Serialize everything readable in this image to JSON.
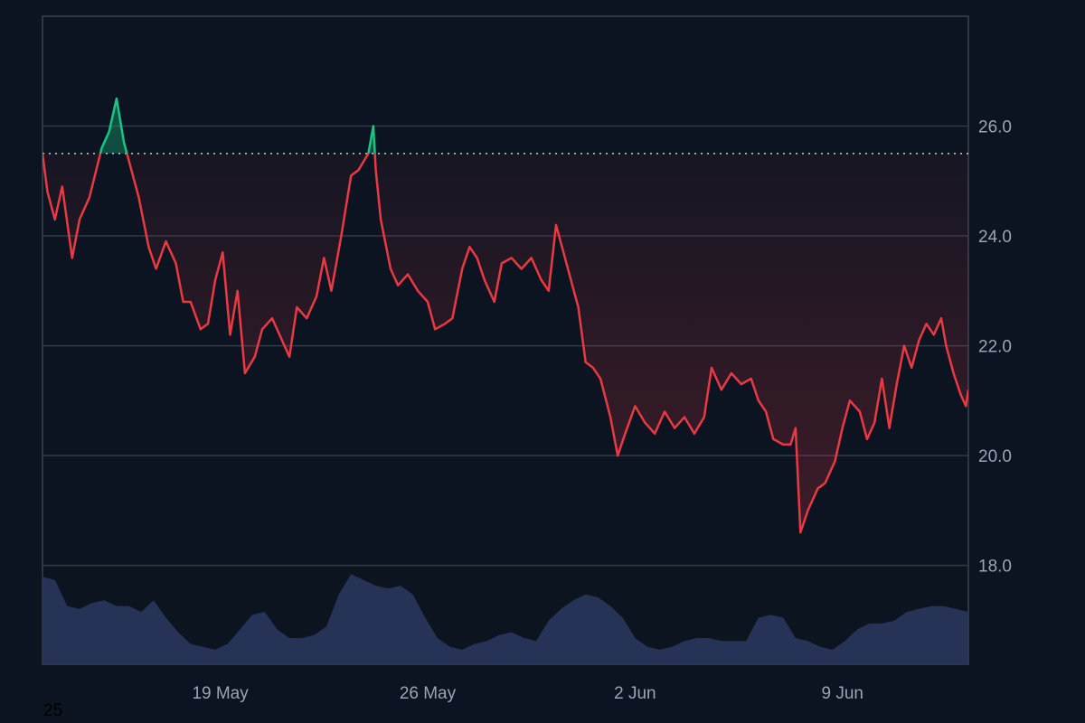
{
  "chart_data": {
    "type": "area",
    "ylim": [
      16.2,
      28.0
    ],
    "y_ticks": [
      "26.0",
      "24.0",
      "22.0",
      "20.0",
      "18.0"
    ],
    "y_tick_values": [
      26,
      24,
      22,
      20,
      18
    ],
    "x_ticks": [
      "19 May",
      "26 May",
      "2 Jun",
      "9 Jun"
    ],
    "x_tick_dates": [
      "2024-05-19",
      "2024-05-26",
      "2024-06-02",
      "2024-06-09"
    ],
    "x_range": [
      "2024-05-13",
      "2024-06-13T06:00"
    ],
    "baseline": 25.5,
    "grid": true,
    "colors": {
      "above": "#16c784",
      "below": "#ea3943",
      "volume": "#2d3a63",
      "background": "#0d1421"
    },
    "series": [
      {
        "values": [
          {
            "x": "2024-05-13T00:00",
            "y": 25.5
          },
          {
            "x": "2024-05-13T04:00",
            "y": 24.8
          },
          {
            "x": "2024-05-13T10:00",
            "y": 24.3
          },
          {
            "x": "2024-05-13T16:00",
            "y": 24.9
          },
          {
            "x": "2024-05-14T00:00",
            "y": 23.6
          },
          {
            "x": "2024-05-14T06:00",
            "y": 24.3
          },
          {
            "x": "2024-05-14T14:00",
            "y": 24.7
          },
          {
            "x": "2024-05-15T00:00",
            "y": 25.6
          },
          {
            "x": "2024-05-15T06:00",
            "y": 25.9
          },
          {
            "x": "2024-05-15T12:00",
            "y": 26.5
          },
          {
            "x": "2024-05-15T18:00",
            "y": 25.7
          },
          {
            "x": "2024-05-16T00:00",
            "y": 25.2
          },
          {
            "x": "2024-05-16T06:00",
            "y": 24.7
          },
          {
            "x": "2024-05-16T14:00",
            "y": 23.8
          },
          {
            "x": "2024-05-16T20:00",
            "y": 23.4
          },
          {
            "x": "2024-05-17T04:00",
            "y": 23.9
          },
          {
            "x": "2024-05-17T12:00",
            "y": 23.5
          },
          {
            "x": "2024-05-17T18:00",
            "y": 22.8
          },
          {
            "x": "2024-05-18T00:00",
            "y": 22.8
          },
          {
            "x": "2024-05-18T08:00",
            "y": 22.3
          },
          {
            "x": "2024-05-18T14:00",
            "y": 22.4
          },
          {
            "x": "2024-05-18T20:00",
            "y": 23.2
          },
          {
            "x": "2024-05-19T02:00",
            "y": 23.7
          },
          {
            "x": "2024-05-19T08:00",
            "y": 22.2
          },
          {
            "x": "2024-05-19T14:00",
            "y": 23.0
          },
          {
            "x": "2024-05-19T20:00",
            "y": 21.5
          },
          {
            "x": "2024-05-20T04:00",
            "y": 21.8
          },
          {
            "x": "2024-05-20T10:00",
            "y": 22.3
          },
          {
            "x": "2024-05-20T18:00",
            "y": 22.5
          },
          {
            "x": "2024-05-21T02:00",
            "y": 22.1
          },
          {
            "x": "2024-05-21T08:00",
            "y": 21.8
          },
          {
            "x": "2024-05-21T14:00",
            "y": 22.7
          },
          {
            "x": "2024-05-21T22:00",
            "y": 22.5
          },
          {
            "x": "2024-05-22T06:00",
            "y": 22.9
          },
          {
            "x": "2024-05-22T12:00",
            "y": 23.6
          },
          {
            "x": "2024-05-22T18:00",
            "y": 23.0
          },
          {
            "x": "2024-05-23T02:00",
            "y": 24.0
          },
          {
            "x": "2024-05-23T10:00",
            "y": 25.1
          },
          {
            "x": "2024-05-23T16:00",
            "y": 25.2
          },
          {
            "x": "2024-05-24T00:00",
            "y": 25.5
          },
          {
            "x": "2024-05-24T04:00",
            "y": 26.0
          },
          {
            "x": "2024-05-24T06:00",
            "y": 25.2
          },
          {
            "x": "2024-05-24T10:00",
            "y": 24.3
          },
          {
            "x": "2024-05-24T18:00",
            "y": 23.4
          },
          {
            "x": "2024-05-25T00:00",
            "y": 23.1
          },
          {
            "x": "2024-05-25T08:00",
            "y": 23.3
          },
          {
            "x": "2024-05-25T16:00",
            "y": 23.0
          },
          {
            "x": "2024-05-26T00:00",
            "y": 22.8
          },
          {
            "x": "2024-05-26T06:00",
            "y": 22.3
          },
          {
            "x": "2024-05-26T14:00",
            "y": 22.4
          },
          {
            "x": "2024-05-26T20:00",
            "y": 22.5
          },
          {
            "x": "2024-05-27T04:00",
            "y": 23.4
          },
          {
            "x": "2024-05-27T10:00",
            "y": 23.8
          },
          {
            "x": "2024-05-27T16:00",
            "y": 23.6
          },
          {
            "x": "2024-05-27T22:00",
            "y": 23.2
          },
          {
            "x": "2024-05-28T06:00",
            "y": 22.8
          },
          {
            "x": "2024-05-28T12:00",
            "y": 23.5
          },
          {
            "x": "2024-05-28T20:00",
            "y": 23.6
          },
          {
            "x": "2024-05-29T04:00",
            "y": 23.4
          },
          {
            "x": "2024-05-29T12:00",
            "y": 23.6
          },
          {
            "x": "2024-05-29T20:00",
            "y": 23.2
          },
          {
            "x": "2024-05-30T02:00",
            "y": 23.0
          },
          {
            "x": "2024-05-30T08:00",
            "y": 24.2
          },
          {
            "x": "2024-05-30T14:00",
            "y": 23.7
          },
          {
            "x": "2024-05-30T20:00",
            "y": 23.2
          },
          {
            "x": "2024-05-31T02:00",
            "y": 22.7
          },
          {
            "x": "2024-05-31T08:00",
            "y": 21.7
          },
          {
            "x": "2024-05-31T14:00",
            "y": 21.6
          },
          {
            "x": "2024-05-31T20:00",
            "y": 21.4
          },
          {
            "x": "2024-06-01T04:00",
            "y": 20.7
          },
          {
            "x": "2024-06-01T10:00",
            "y": 20.0
          },
          {
            "x": "2024-06-01T16:00",
            "y": 20.4
          },
          {
            "x": "2024-06-02T00:00",
            "y": 20.9
          },
          {
            "x": "2024-06-02T08:00",
            "y": 20.6
          },
          {
            "x": "2024-06-02T16:00",
            "y": 20.4
          },
          {
            "x": "2024-06-03T00:00",
            "y": 20.8
          },
          {
            "x": "2024-06-03T08:00",
            "y": 20.5
          },
          {
            "x": "2024-06-03T16:00",
            "y": 20.7
          },
          {
            "x": "2024-06-04T00:00",
            "y": 20.4
          },
          {
            "x": "2024-06-04T08:00",
            "y": 20.7
          },
          {
            "x": "2024-06-04T14:00",
            "y": 21.6
          },
          {
            "x": "2024-06-04T22:00",
            "y": 21.2
          },
          {
            "x": "2024-06-05T06:00",
            "y": 21.5
          },
          {
            "x": "2024-06-05T14:00",
            "y": 21.3
          },
          {
            "x": "2024-06-05T22:00",
            "y": 21.4
          },
          {
            "x": "2024-06-06T04:00",
            "y": 21.0
          },
          {
            "x": "2024-06-06T10:00",
            "y": 20.8
          },
          {
            "x": "2024-06-06T16:00",
            "y": 20.3
          },
          {
            "x": "2024-06-07T00:00",
            "y": 20.2
          },
          {
            "x": "2024-06-07T06:00",
            "y": 20.2
          },
          {
            "x": "2024-06-07T10:00",
            "y": 20.5
          },
          {
            "x": "2024-06-07T14:00",
            "y": 18.6
          },
          {
            "x": "2024-06-07T20:00",
            "y": 19.0
          },
          {
            "x": "2024-06-08T04:00",
            "y": 19.4
          },
          {
            "x": "2024-06-08T10:00",
            "y": 19.5
          },
          {
            "x": "2024-06-08T18:00",
            "y": 19.9
          },
          {
            "x": "2024-06-09T00:00",
            "y": 20.5
          },
          {
            "x": "2024-06-09T06:00",
            "y": 21.0
          },
          {
            "x": "2024-06-09T14:00",
            "y": 20.8
          },
          {
            "x": "2024-06-09T20:00",
            "y": 20.3
          },
          {
            "x": "2024-06-10T02:00",
            "y": 20.6
          },
          {
            "x": "2024-06-10T08:00",
            "y": 21.4
          },
          {
            "x": "2024-06-10T14:00",
            "y": 20.5
          },
          {
            "x": "2024-06-10T20:00",
            "y": 21.3
          },
          {
            "x": "2024-06-11T02:00",
            "y": 22.0
          },
          {
            "x": "2024-06-11T08:00",
            "y": 21.6
          },
          {
            "x": "2024-06-11T14:00",
            "y": 22.1
          },
          {
            "x": "2024-06-11T20:00",
            "y": 22.4
          },
          {
            "x": "2024-06-12T02:00",
            "y": 22.2
          },
          {
            "x": "2024-06-12T08:00",
            "y": 22.5
          },
          {
            "x": "2024-06-12T12:00",
            "y": 22.0
          },
          {
            "x": "2024-06-12T18:00",
            "y": 21.5
          },
          {
            "x": "2024-06-13T00:00",
            "y": 21.1
          },
          {
            "x": "2024-06-13T04:00",
            "y": 20.9
          },
          {
            "x": "2024-06-13T06:00",
            "y": 21.2
          }
        ]
      }
    ],
    "volume": [
      1.5,
      1.45,
      1.0,
      0.95,
      1.05,
      1.1,
      1.0,
      1.0,
      0.9,
      1.1,
      0.8,
      0.55,
      0.35,
      0.3,
      0.25,
      0.35,
      0.6,
      0.85,
      0.9,
      0.6,
      0.45,
      0.45,
      0.5,
      0.65,
      1.2,
      1.55,
      1.45,
      1.35,
      1.3,
      1.35,
      1.2,
      0.8,
      0.45,
      0.3,
      0.25,
      0.35,
      0.4,
      0.5,
      0.55,
      0.45,
      0.4,
      0.75,
      0.95,
      1.1,
      1.2,
      1.15,
      1.0,
      0.8,
      0.45,
      0.3,
      0.25,
      0.3,
      0.4,
      0.45,
      0.45,
      0.4,
      0.4,
      0.4,
      0.8,
      0.85,
      0.8,
      0.45,
      0.4,
      0.3,
      0.25,
      0.4,
      0.6,
      0.7,
      0.7,
      0.75,
      0.9,
      0.95,
      1.0,
      1.0,
      0.95,
      0.9
    ],
    "volume_label": "25"
  }
}
